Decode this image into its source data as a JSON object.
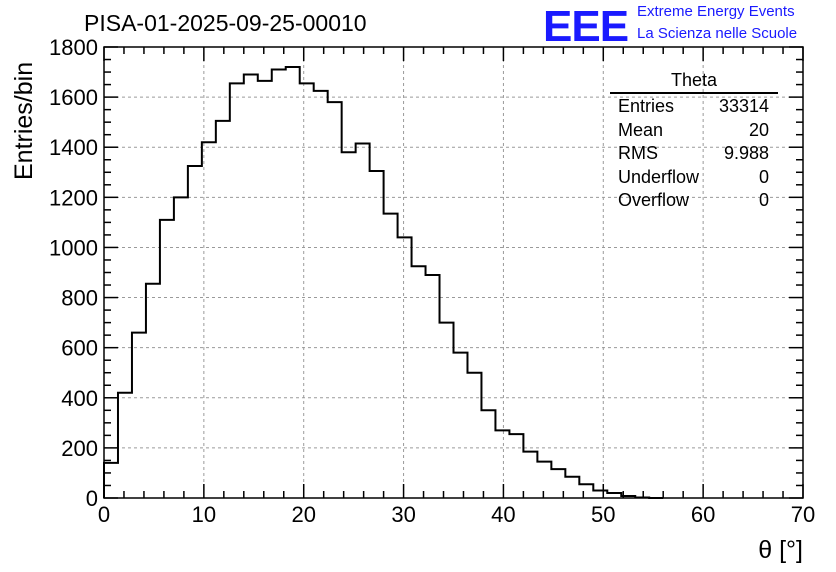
{
  "run_title": "PISA-01-2025-09-25-00010",
  "logo": {
    "mark": "EEE",
    "line1": "Extreme Energy Events",
    "line2": "La Scienza nelle Scuole",
    "color": "#1a1aff"
  },
  "stats": {
    "title": "Theta",
    "rows": [
      {
        "label": "Entries",
        "value": "33314"
      },
      {
        "label": "Mean",
        "value": "20"
      },
      {
        "label": "RMS",
        "value": "9.988"
      },
      {
        "label": "Underflow",
        "value": "0"
      },
      {
        "label": "Overflow",
        "value": "0"
      }
    ]
  },
  "chart_data": {
    "type": "histogram",
    "title": "PISA-01-2025-09-25-00010",
    "xlabel": "θ [°]",
    "ylabel": "Entries/bin",
    "xlim": [
      0,
      70
    ],
    "ylim": [
      0,
      1800
    ],
    "grid": true,
    "bin_width": 1.4,
    "x_ticks": [
      0,
      10,
      20,
      30,
      40,
      50,
      60,
      70
    ],
    "y_ticks": [
      0,
      200,
      400,
      600,
      800,
      1000,
      1200,
      1400,
      1600,
      1800
    ],
    "values": [
      140,
      420,
      660,
      855,
      1110,
      1200,
      1325,
      1420,
      1505,
      1655,
      1690,
      1665,
      1710,
      1720,
      1655,
      1625,
      1580,
      1380,
      1415,
      1305,
      1135,
      1040,
      925,
      890,
      700,
      580,
      500,
      350,
      270,
      255,
      185,
      145,
      115,
      85,
      55,
      30,
      20,
      8,
      2,
      0
    ]
  }
}
